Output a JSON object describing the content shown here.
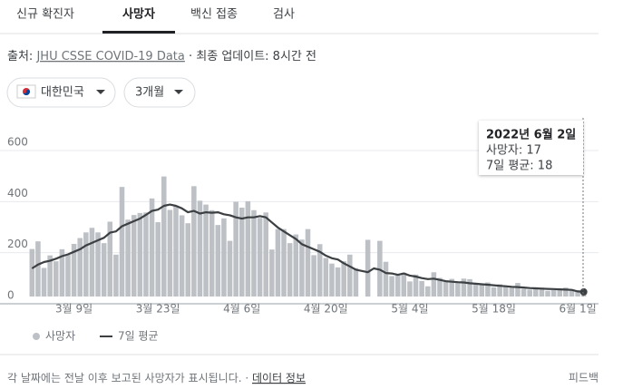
{
  "tabs": [
    "신규 확진자",
    "사망자",
    "백신 접종",
    "검사"
  ],
  "source": {
    "label": "출처:",
    "link": "JHU CSSE COVID-19 Data",
    "updated": "· 최종 업데이트: 8시간 전"
  },
  "filters": [
    "대한민국",
    "3개월"
  ],
  "chart_data": {
    "type": "bar",
    "categories": [
      null,
      null,
      null,
      null,
      null,
      null,
      null,
      "3월 9일",
      null,
      null,
      null,
      null,
      null,
      null,
      null,
      null,
      null,
      null,
      null,
      null,
      null,
      "3월 23일",
      null,
      null,
      null,
      null,
      null,
      null,
      null,
      null,
      null,
      null,
      null,
      null,
      null,
      "4월 6일",
      null,
      null,
      null,
      null,
      null,
      null,
      null,
      null,
      null,
      null,
      null,
      null,
      null,
      "4월 20일",
      null,
      null,
      null,
      null,
      null,
      null,
      null,
      null,
      null,
      null,
      null,
      null,
      null,
      "5월 4일",
      null,
      null,
      null,
      null,
      null,
      null,
      null,
      null,
      null,
      null,
      null,
      null,
      null,
      "5월 18일",
      null,
      null,
      null,
      null,
      null,
      null,
      null,
      null,
      null,
      null,
      null,
      null,
      null,
      "6월 1일",
      null
    ],
    "series": [
      {
        "name": "사망자",
        "type": "bar",
        "color": "#bdc1c6",
        "values": [
          186,
          216,
          112,
          161,
          138,
          185,
          164,
          206,
          229,
          251,
          269,
          251,
          209,
          293,
          164,
          429,
          301,
          319,
          327,
          329,
          384,
          291,
          470,
          339,
          356,
          318,
          287,
          432,
          375,
          360,
          338,
          280,
          306,
          218,
          371,
          348,
          373,
          338,
          308,
          329,
          184,
          264,
          264,
          209,
          243,
          223,
          264,
          162,
          205,
          151,
          129,
          114,
          138,
          164,
          111,
          0,
          222,
          0,
          218,
          136,
          80,
          83,
          93,
          59,
          86,
          61,
          40,
          95,
          73,
          61,
          69,
          54,
          70,
          68,
          48,
          49,
          55,
          36,
          48,
          41,
          35,
          53,
          30,
          27,
          36,
          35,
          22,
          25,
          30,
          35,
          24,
          25,
          17
        ]
      },
      {
        "name": "7일 평균",
        "type": "line",
        "color": "#3c4043",
        "values": [
          110,
          125,
          135,
          140,
          148,
          158,
          165,
          175,
          185,
          200,
          210,
          220,
          230,
          250,
          255,
          275,
          285,
          295,
          305,
          320,
          335,
          340,
          355,
          360,
          355,
          345,
          330,
          335,
          325,
          330,
          328,
          330,
          322,
          318,
          310,
          305,
          310,
          310,
          315,
          310,
          290,
          270,
          255,
          240,
          225,
          205,
          195,
          185,
          175,
          160,
          150,
          145,
          130,
          118,
          105,
          100,
          95,
          110,
          105,
          92,
          90,
          85,
          90,
          82,
          78,
          72,
          68,
          70,
          65,
          60,
          58,
          56,
          55,
          52,
          50,
          48,
          46,
          44,
          42,
          40,
          38,
          37,
          35,
          33,
          32,
          31,
          30,
          29,
          28,
          27,
          26,
          20,
          18
        ]
      }
    ],
    "ylim": [
      0,
      600
    ],
    "yticks": [
      0,
      200,
      400,
      600
    ],
    "grid": true,
    "tooltip": {
      "date": "2022년 6월 2일",
      "lines": [
        "사망자: 17",
        "7일 평균: 18"
      ]
    }
  },
  "footer": {
    "note": "각 날짜에는 전날 이후 보고된 사망자가 표시됩니다. ·",
    "link": "데이터 정보",
    "feedback": "피드백"
  }
}
